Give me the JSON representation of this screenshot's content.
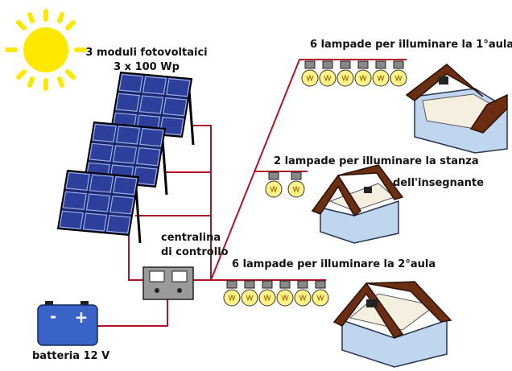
{
  "panels": {
    "label": [
      "3 moduli fotovoltaici",
      "3 x 100 Wp"
    ]
  },
  "controller": {
    "label": [
      "centralina",
      "di controllo"
    ]
  },
  "battery": {
    "label": "batteria 12 V",
    "terminals": [
      "-",
      "+"
    ]
  },
  "lamp_groups": [
    {
      "label": [
        "6 lampade per illuminare la 1°aula"
      ],
      "lamps": 6
    },
    {
      "label": [
        "2 lampade per illuminare la stanza",
        "dell'insegnante"
      ],
      "lamps": 2
    },
    {
      "label": [
        "6 lampade per illuminare la 2°aula"
      ],
      "lamps": 6
    }
  ]
}
